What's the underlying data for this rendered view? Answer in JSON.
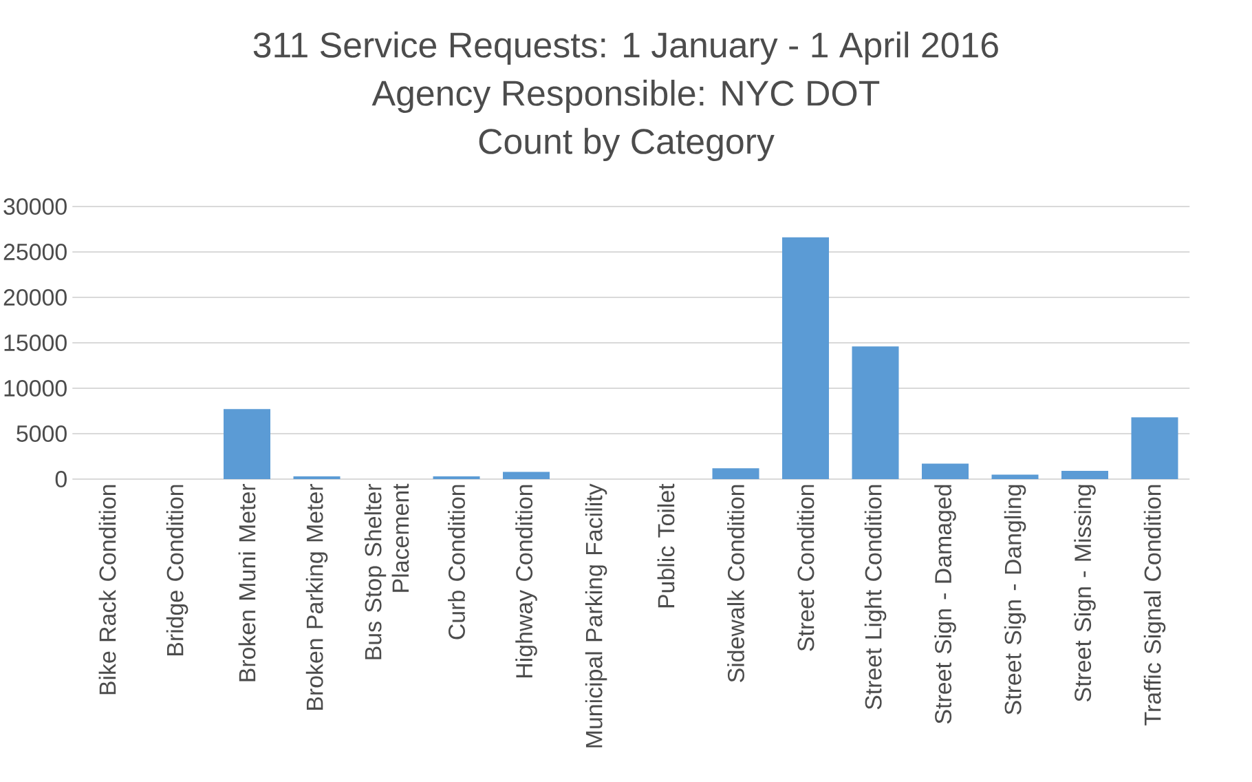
{
  "chart_data": {
    "type": "bar",
    "title": "311 Service Requests: 1 January - 1 April 2016",
    "subtitle": "Agency Responsible:  NYC DOT",
    "annotations": [
      "Count by Category"
    ],
    "categories": [
      "Bike Rack Condition",
      "Bridge Condition",
      "Broken Muni Meter",
      "Broken Parking Meter",
      "Bus Stop Shelter Placement",
      "Curb Condition",
      "Highway Condition",
      "Municipal Parking Facility",
      "Public Toilet",
      "Sidewalk Condition",
      "Street Condition",
      "Street Light Condition",
      "Street Sign - Damaged",
      "Street Sign - Dangling",
      "Street Sign - Missing",
      "Traffic Signal Condition"
    ],
    "values": [
      0,
      0,
      7700,
      300,
      0,
      300,
      800,
      0,
      0,
      1200,
      26600,
      14600,
      1700,
      500,
      900,
      6800
    ],
    "color": "#5b9bd5",
    "ylim": [
      0,
      30000
    ],
    "yticks": [
      0,
      5000,
      10000,
      15000,
      20000,
      25000,
      30000
    ],
    "grid": "y"
  }
}
